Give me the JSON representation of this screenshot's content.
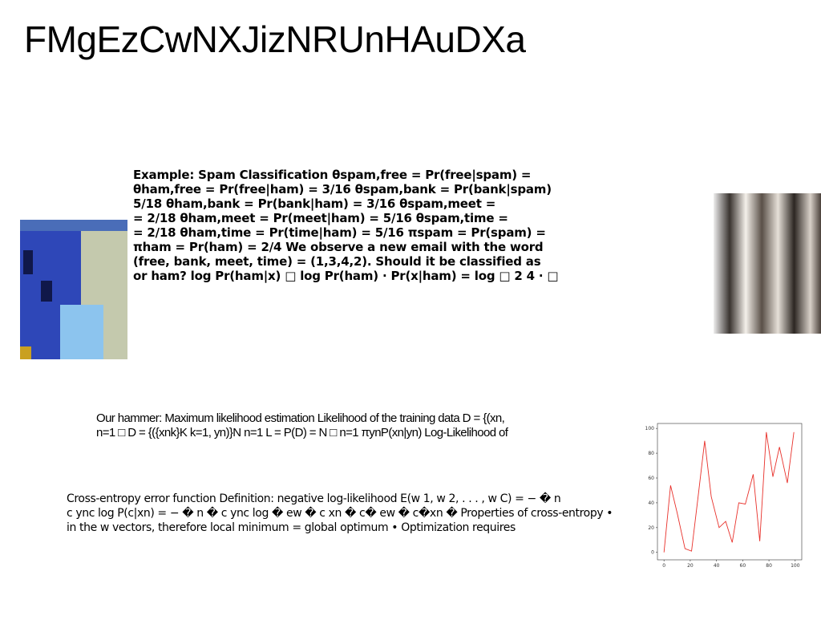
{
  "header": {
    "title": "FMgEzCwNXJizNRUnHAuDXa"
  },
  "blocks": [
    {
      "lines": [
        "Example: Spam Classification θspam,free = Pr(free|spam) =",
        "θham,free = Pr(free|ham) = 3/16 θspam,bank = Pr(bank|spam)",
        "5/18 θham,bank = Pr(bank|ham) = 3/16 θspam,meet =",
        "= 2/18 θham,meet = Pr(meet|ham) = 5/16 θspam,time =",
        "= 2/18 θham,time = Pr(time|ham) = 5/16 πspam = Pr(spam) =",
        "πham = Pr(ham) = 2/4 We observe a new email with the word",
        "(free, bank, meet, time) = (1,3,4,2). Should it be classified as",
        "or ham? log Pr(ham|x) □ log Pr(ham) · Pr(x|ham) = log □ 2 4 · □"
      ]
    },
    {
      "lines": [
        "Our hammer: Maximum likelihood estimation Likelihood of the training data D = {(xn,",
        "n=1 □ D = {({xnk}K k=1, yn)}N n=1 L = P(D) = N □ n=1 πynP(xn|yn) Log-Likelihood of"
      ]
    },
    {
      "lines": [
        "Cross-entropy error function Definition: negative log-likelihood E(w 1, w 2, . . . , w C) = − � n",
        "c ync log P(c|xn) = − � n � c ync log � ew � c xn � c� ew � c�xn � Properties of cross-entropy •",
        "in the w vectors, therefore local minimum = global optimum • Optimization requires"
      ]
    }
  ],
  "chart_data": {
    "type": "line",
    "color": "#e8302a",
    "x": [
      0,
      5,
      10,
      16,
      21,
      26,
      31,
      36,
      42,
      47,
      52,
      57,
      62,
      68,
      73,
      78,
      83,
      88,
      94,
      99
    ],
    "values": [
      0,
      54,
      32,
      3,
      1,
      45,
      90,
      45,
      20,
      25,
      8,
      40,
      39,
      63,
      9,
      97,
      61,
      85,
      56,
      97
    ],
    "xlim": [
      -5,
      105
    ],
    "ylim": [
      -6,
      104
    ],
    "xticks": [
      0,
      20,
      40,
      60,
      80,
      100
    ],
    "yticks": [
      0,
      20,
      40,
      60,
      80,
      100
    ]
  }
}
